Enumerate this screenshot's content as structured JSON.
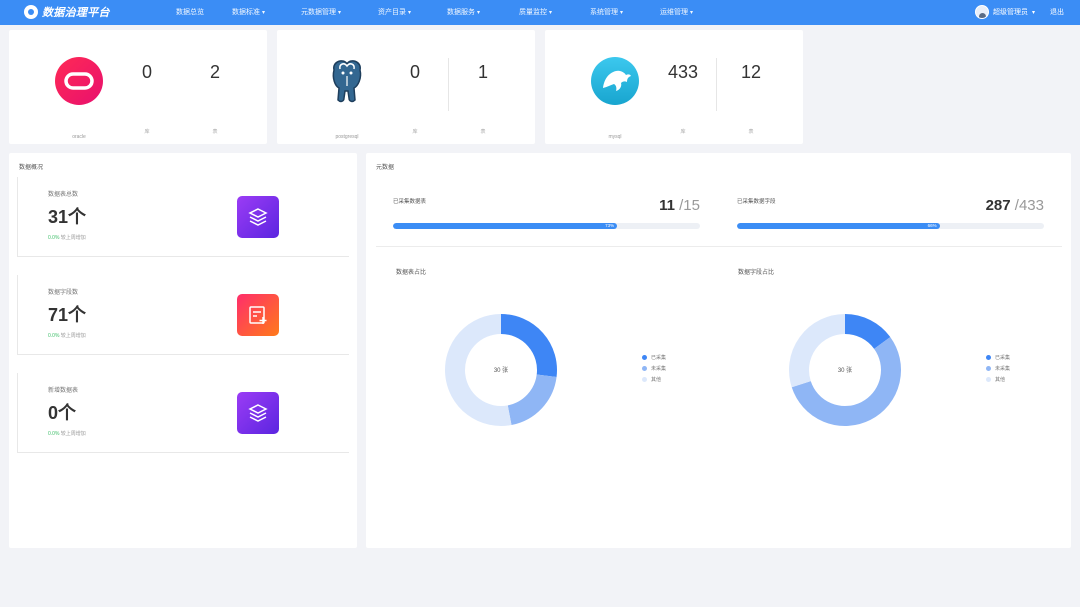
{
  "nav": {
    "brand": "数据治理平台",
    "items": [
      {
        "label": "数据总览",
        "has_menu": false
      },
      {
        "label": "数据标准",
        "has_menu": true
      },
      {
        "label": "元数据管理",
        "has_menu": true
      },
      {
        "label": "资产目录",
        "has_menu": true
      },
      {
        "label": "数据服务",
        "has_menu": true
      },
      {
        "label": "质量监控",
        "has_menu": true
      },
      {
        "label": "系统管理",
        "has_menu": true
      },
      {
        "label": "运维管理",
        "has_menu": true
      }
    ],
    "user": "超级管理员",
    "logout": "退出"
  },
  "databases": [
    {
      "name": "oracle",
      "db_count": "0",
      "db_label": "库",
      "table_count": "2",
      "table_label": "表",
      "color": "#f0145a"
    },
    {
      "name": "postgresql",
      "db_count": "0",
      "db_label": "库",
      "table_count": "1",
      "table_label": "表",
      "color": "#336791"
    },
    {
      "name": "mysql",
      "db_count": "433",
      "db_label": "库",
      "table_count": "12",
      "table_label": "表",
      "color": "#1fb6e0"
    }
  ],
  "overview": {
    "title": "数据概况",
    "metrics": [
      {
        "title": "数据表总数",
        "value": "31个",
        "sub_change": "0.0%",
        "sub_text": "较上周增加",
        "icon": "layers-icon"
      },
      {
        "title": "数据字段数",
        "value": "71个",
        "sub_change": "0.0%",
        "sub_text": "较上周增加",
        "icon": "field-add-icon"
      },
      {
        "title": "新增数据表",
        "value": "0个",
        "sub_change": "0.0%",
        "sub_text": "较上周增加",
        "icon": "layers-icon"
      }
    ]
  },
  "stats": {
    "title": "元数据",
    "progress": [
      {
        "title": "已采集数据表",
        "value": "11",
        "total": "/15",
        "percent": 73
      },
      {
        "title": "已采集数据字段",
        "value": "287",
        "total": "/433",
        "percent": 66
      }
    ],
    "donuts": [
      {
        "title": "数据表占比",
        "center": "30 张",
        "legend": [
          "已采集",
          "未采集",
          "其他"
        ],
        "values": [
          27,
          20,
          53
        ]
      },
      {
        "title": "数据字段占比",
        "center": "30 张",
        "legend": [
          "已采集",
          "未采集",
          "其他"
        ],
        "values": [
          15,
          55,
          30
        ]
      }
    ],
    "colors": [
      "#3e86f5",
      "#8fb6f5",
      "#dce8fb"
    ]
  }
}
